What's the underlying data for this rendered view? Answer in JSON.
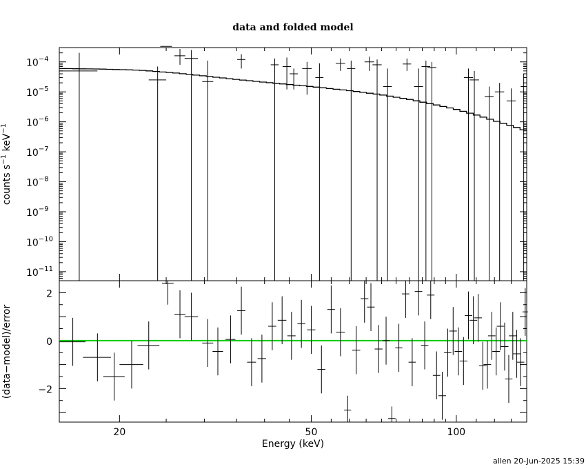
{
  "chart_data": {
    "type": "scatter",
    "title": "data and folded model",
    "xlabel": "Energy (keV)",
    "footer": "allen 20-Jun-2025 15:39",
    "x_scale": "log",
    "xlim": [
      15,
      140
    ],
    "x_ticks": [
      "20",
      "50",
      "100"
    ],
    "colors": {
      "axes": "#000000",
      "data": "#000000",
      "model": "#000000",
      "zero_line": "#00cc00"
    },
    "top_panel": {
      "ylabel_parts": {
        "a": "counts s",
        "e1": "−1",
        "b": " keV",
        "e2": "−1"
      },
      "y_scale": "log",
      "ylim": [
        5e-12,
        0.0003
      ],
      "y_ticks": [
        {
          "exp": -11,
          "base": "10",
          "sup": "−11"
        },
        {
          "exp": -10,
          "base": "10",
          "sup": "−10"
        },
        {
          "exp": -9,
          "base": "10",
          "sup": "−9"
        },
        {
          "exp": -8,
          "base": "10",
          "sup": "−8"
        },
        {
          "exp": -7,
          "base": "10",
          "sup": "−7"
        },
        {
          "exp": -6,
          "base": "10",
          "sup": "−6"
        },
        {
          "exp": -5,
          "base": "10",
          "sup": "−5"
        },
        {
          "exp": -4,
          "base": "10",
          "sup": "−4"
        }
      ],
      "data": [
        {
          "e": 16.5,
          "w": 1.5,
          "y": 5e-05,
          "up": 0.0002
        },
        {
          "e": 24.0,
          "w": 1.0,
          "y": 2.5e-05,
          "up": 7e-05
        },
        {
          "e": 25.0,
          "w": 0.7,
          "y": 0.00033,
          "up": 0.0004,
          "lo": 0.00026
        },
        {
          "e": 26.7,
          "w": 0.7,
          "y": 0.00016,
          "up": 0.00027,
          "lo": 8e-05
        },
        {
          "e": 28.2,
          "w": 0.9,
          "y": 0.00013,
          "up": 0.00025
        },
        {
          "e": 30.5,
          "w": 0.8,
          "y": 2.2e-05,
          "up": 0.00011
        },
        {
          "e": 35.8,
          "w": 0.7,
          "y": 0.00012,
          "up": 0.00018,
          "lo": 6e-05
        },
        {
          "e": 42.0,
          "w": 0.8,
          "y": 8e-05,
          "up": 0.00013
        },
        {
          "e": 44.5,
          "w": 0.9,
          "y": 7e-05,
          "up": 0.00014,
          "lo": 1.2e-05
        },
        {
          "e": 46.0,
          "w": 0.9,
          "y": 4e-05,
          "up": 6e-05,
          "lo": 1.2e-05
        },
        {
          "e": 49.0,
          "w": 1.1,
          "y": 6e-05,
          "up": 0.0001,
          "lo": 8e-06
        },
        {
          "e": 52.0,
          "w": 1.0,
          "y": 3e-05,
          "up": 9e-05
        },
        {
          "e": 57.5,
          "w": 1.3,
          "y": 9e-05,
          "up": 0.00013,
          "lo": 5e-05
        },
        {
          "e": 60.5,
          "w": 1.2,
          "y": 6e-05,
          "up": 0.00011
        },
        {
          "e": 66.0,
          "w": 1.5,
          "y": 0.0001,
          "up": 0.00015,
          "lo": 5e-05
        },
        {
          "e": 68.5,
          "w": 1.5,
          "y": 8e-05,
          "up": 0.00012
        },
        {
          "e": 72.0,
          "w": 1.5,
          "y": 1.5e-05,
          "up": 6e-05
        },
        {
          "e": 79.0,
          "w": 1.6,
          "y": 8.5e-05,
          "up": 0.00013,
          "lo": 5e-05
        },
        {
          "e": 83.5,
          "w": 1.8,
          "y": 1.5e-05,
          "up": 6e-05
        },
        {
          "e": 86.5,
          "w": 1.8,
          "y": 7e-05,
          "up": 0.00011
        },
        {
          "e": 89.0,
          "w": 1.9,
          "y": 6.5e-05,
          "up": 0.0001
        },
        {
          "e": 106.0,
          "w": 2.3,
          "y": 3e-05,
          "up": 6e-05
        },
        {
          "e": 109.0,
          "w": 2.5,
          "y": 2.5e-05,
          "up": 5e-05
        },
        {
          "e": 117.0,
          "w": 2.5,
          "y": 7e-06,
          "up": 1.5e-05
        },
        {
          "e": 123.0,
          "w": 2.7,
          "y": 1e-05,
          "up": 2e-05
        },
        {
          "e": 130.0,
          "w": 2.8,
          "y": 5e-06,
          "up": 1.3e-05
        },
        {
          "e": 138.0,
          "w": 2.0,
          "y": 1.5e-05,
          "up": 4e-05
        }
      ],
      "model": [
        [
          15,
          6e-05
        ],
        [
          18,
          5.8e-05
        ],
        [
          22,
          5.3e-05
        ],
        [
          26,
          4.3e-05
        ],
        [
          30,
          3.4e-05
        ],
        [
          35,
          2.6e-05
        ],
        [
          40,
          2.1e-05
        ],
        [
          50,
          1.5e-05
        ],
        [
          60,
          1.1e-05
        ],
        [
          70,
          8e-06
        ],
        [
          80,
          5.6e-06
        ],
        [
          90,
          3.8e-06
        ],
        [
          100,
          2.6e-06
        ],
        [
          110,
          1.7e-06
        ],
        [
          120,
          1.1e-06
        ],
        [
          130,
          7.5e-07
        ],
        [
          140,
          5e-07
        ]
      ]
    },
    "bottom_panel": {
      "ylabel": "(data−model)/error",
      "ylim": [
        -3.4,
        2.5
      ],
      "y_ticks": [
        "2",
        "0",
        "−2"
      ],
      "data": [
        {
          "e": 16.0,
          "w": 1.0,
          "y": -0.05,
          "err": 1.0
        },
        {
          "e": 18.0,
          "w": 1.2,
          "y": -0.7,
          "err": 1.0
        },
        {
          "e": 19.5,
          "w": 1.0,
          "y": -1.5,
          "err": 1.0
        },
        {
          "e": 21.2,
          "w": 1.2,
          "y": -1.0,
          "err": 1.0
        },
        {
          "e": 23.0,
          "w": 1.2,
          "y": -0.2,
          "err": 1.0
        },
        {
          "e": 25.2,
          "w": 0.7,
          "y": 2.4,
          "err": 0.9
        },
        {
          "e": 26.7,
          "w": 0.7,
          "y": 1.1,
          "err": 1.0
        },
        {
          "e": 28.2,
          "w": 0.9,
          "y": 1.0,
          "err": 1.0
        },
        {
          "e": 30.5,
          "w": 0.8,
          "y": -0.1,
          "err": 1.0
        },
        {
          "e": 32.0,
          "w": 0.8,
          "y": -0.45,
          "err": 1.0
        },
        {
          "e": 34.0,
          "w": 0.8,
          "y": 0.05,
          "err": 1.0
        },
        {
          "e": 35.8,
          "w": 0.7,
          "y": 1.25,
          "err": 1.0
        },
        {
          "e": 37.6,
          "w": 0.8,
          "y": -0.9,
          "err": 1.0
        },
        {
          "e": 39.5,
          "w": 0.8,
          "y": -0.75,
          "err": 1.0
        },
        {
          "e": 41.5,
          "w": 0.8,
          "y": 0.6,
          "err": 1.0
        },
        {
          "e": 43.5,
          "w": 0.9,
          "y": 0.85,
          "err": 1.0
        },
        {
          "e": 45.5,
          "w": 0.9,
          "y": 0.2,
          "err": 1.0
        },
        {
          "e": 47.7,
          "w": 0.9,
          "y": 0.7,
          "err": 1.0
        },
        {
          "e": 50.0,
          "w": 1.0,
          "y": 0.45,
          "err": 1.0
        },
        {
          "e": 52.5,
          "w": 1.0,
          "y": -1.2,
          "err": 1.0
        },
        {
          "e": 55.0,
          "w": 1.0,
          "y": 1.3,
          "err": 1.0
        },
        {
          "e": 57.5,
          "w": 1.2,
          "y": 0.35,
          "err": 1.0
        },
        {
          "e": 59.5,
          "w": 1.0,
          "y": -2.9,
          "err": 0.6
        },
        {
          "e": 62.0,
          "w": 1.2,
          "y": -0.4,
          "err": 1.0
        },
        {
          "e": 64.5,
          "w": 1.2,
          "y": 1.75,
          "err": 1.0
        },
        {
          "e": 66.5,
          "w": 1.2,
          "y": 1.4,
          "err": 1.0
        },
        {
          "e": 69.0,
          "w": 1.3,
          "y": -0.35,
          "err": 1.0
        },
        {
          "e": 71.5,
          "w": 1.3,
          "y": 0.0,
          "err": 1.0
        },
        {
          "e": 73.5,
          "w": 1.3,
          "y": -3.25,
          "err": 0.5
        },
        {
          "e": 76.0,
          "w": 1.3,
          "y": -0.3,
          "err": 1.0
        },
        {
          "e": 78.5,
          "w": 1.4,
          "y": 1.95,
          "err": 1.0
        },
        {
          "e": 81.0,
          "w": 1.4,
          "y": -0.9,
          "err": 1.0
        },
        {
          "e": 83.5,
          "w": 1.5,
          "y": 2.05,
          "err": 1.0
        },
        {
          "e": 86.0,
          "w": 1.5,
          "y": -0.2,
          "err": 1.0
        },
        {
          "e": 88.5,
          "w": 1.6,
          "y": 1.9,
          "err": 1.0
        },
        {
          "e": 91.0,
          "w": 1.6,
          "y": -1.45,
          "err": 1.0
        },
        {
          "e": 93.5,
          "w": 1.7,
          "y": -2.3,
          "err": 1.0
        },
        {
          "e": 96.0,
          "w": 1.7,
          "y": -0.5,
          "err": 1.0
        },
        {
          "e": 98.5,
          "w": 1.8,
          "y": 0.4,
          "err": 1.0
        },
        {
          "e": 101.0,
          "w": 1.8,
          "y": -0.45,
          "err": 1.0
        },
        {
          "e": 103.5,
          "w": 1.9,
          "y": -0.85,
          "err": 1.0
        },
        {
          "e": 106.0,
          "w": 1.9,
          "y": 1.05,
          "err": 1.0
        },
        {
          "e": 108.5,
          "w": 2.0,
          "y": 0.85,
          "err": 1.0
        },
        {
          "e": 111.0,
          "w": 2.0,
          "y": 0.95,
          "err": 1.0
        },
        {
          "e": 113.5,
          "w": 2.0,
          "y": -1.05,
          "err": 1.0
        },
        {
          "e": 116.0,
          "w": 2.1,
          "y": -1.0,
          "err": 1.0
        },
        {
          "e": 118.5,
          "w": 2.1,
          "y": 0.2,
          "err": 1.0
        },
        {
          "e": 121.0,
          "w": 2.2,
          "y": -0.45,
          "err": 1.0
        },
        {
          "e": 123.5,
          "w": 2.2,
          "y": 0.6,
          "err": 1.0
        },
        {
          "e": 126.0,
          "w": 2.3,
          "y": -0.25,
          "err": 1.0
        },
        {
          "e": 128.5,
          "w": 2.3,
          "y": -1.6,
          "err": 1.0
        },
        {
          "e": 131.0,
          "w": 2.4,
          "y": 0.2,
          "err": 1.0
        },
        {
          "e": 133.5,
          "w": 2.4,
          "y": -0.55,
          "err": 1.0
        },
        {
          "e": 136.0,
          "w": 2.4,
          "y": -0.9,
          "err": 1.0
        },
        {
          "e": 139.0,
          "w": 1.8,
          "y": 1.2,
          "err": 1.0
        }
      ]
    }
  }
}
